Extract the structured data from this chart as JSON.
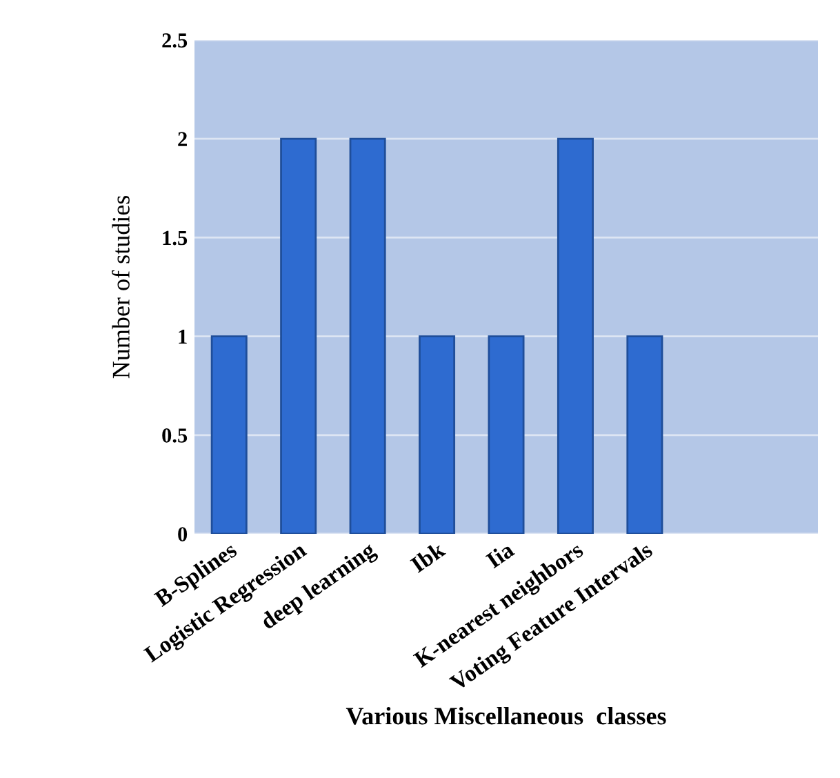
{
  "chart_data": {
    "type": "bar",
    "xlabel": "Various Miscellaneous  classes",
    "ylabel": "Number of studies",
    "categories": [
      "B-Splines",
      "Logistic Regression",
      "deep learning",
      "Ibk",
      "Iia",
      "K-nearest neighbors",
      "Voting Feature Intervals",
      null,
      null
    ],
    "values": [
      1,
      2,
      2,
      1,
      1,
      2,
      1,
      null,
      null
    ],
    "color": "#2e6bd0",
    "ylim": [
      0,
      2.5
    ],
    "yticks": [
      0,
      0.5,
      1,
      1.5,
      2,
      2.5
    ],
    "grid": "y",
    "legend": false
  }
}
